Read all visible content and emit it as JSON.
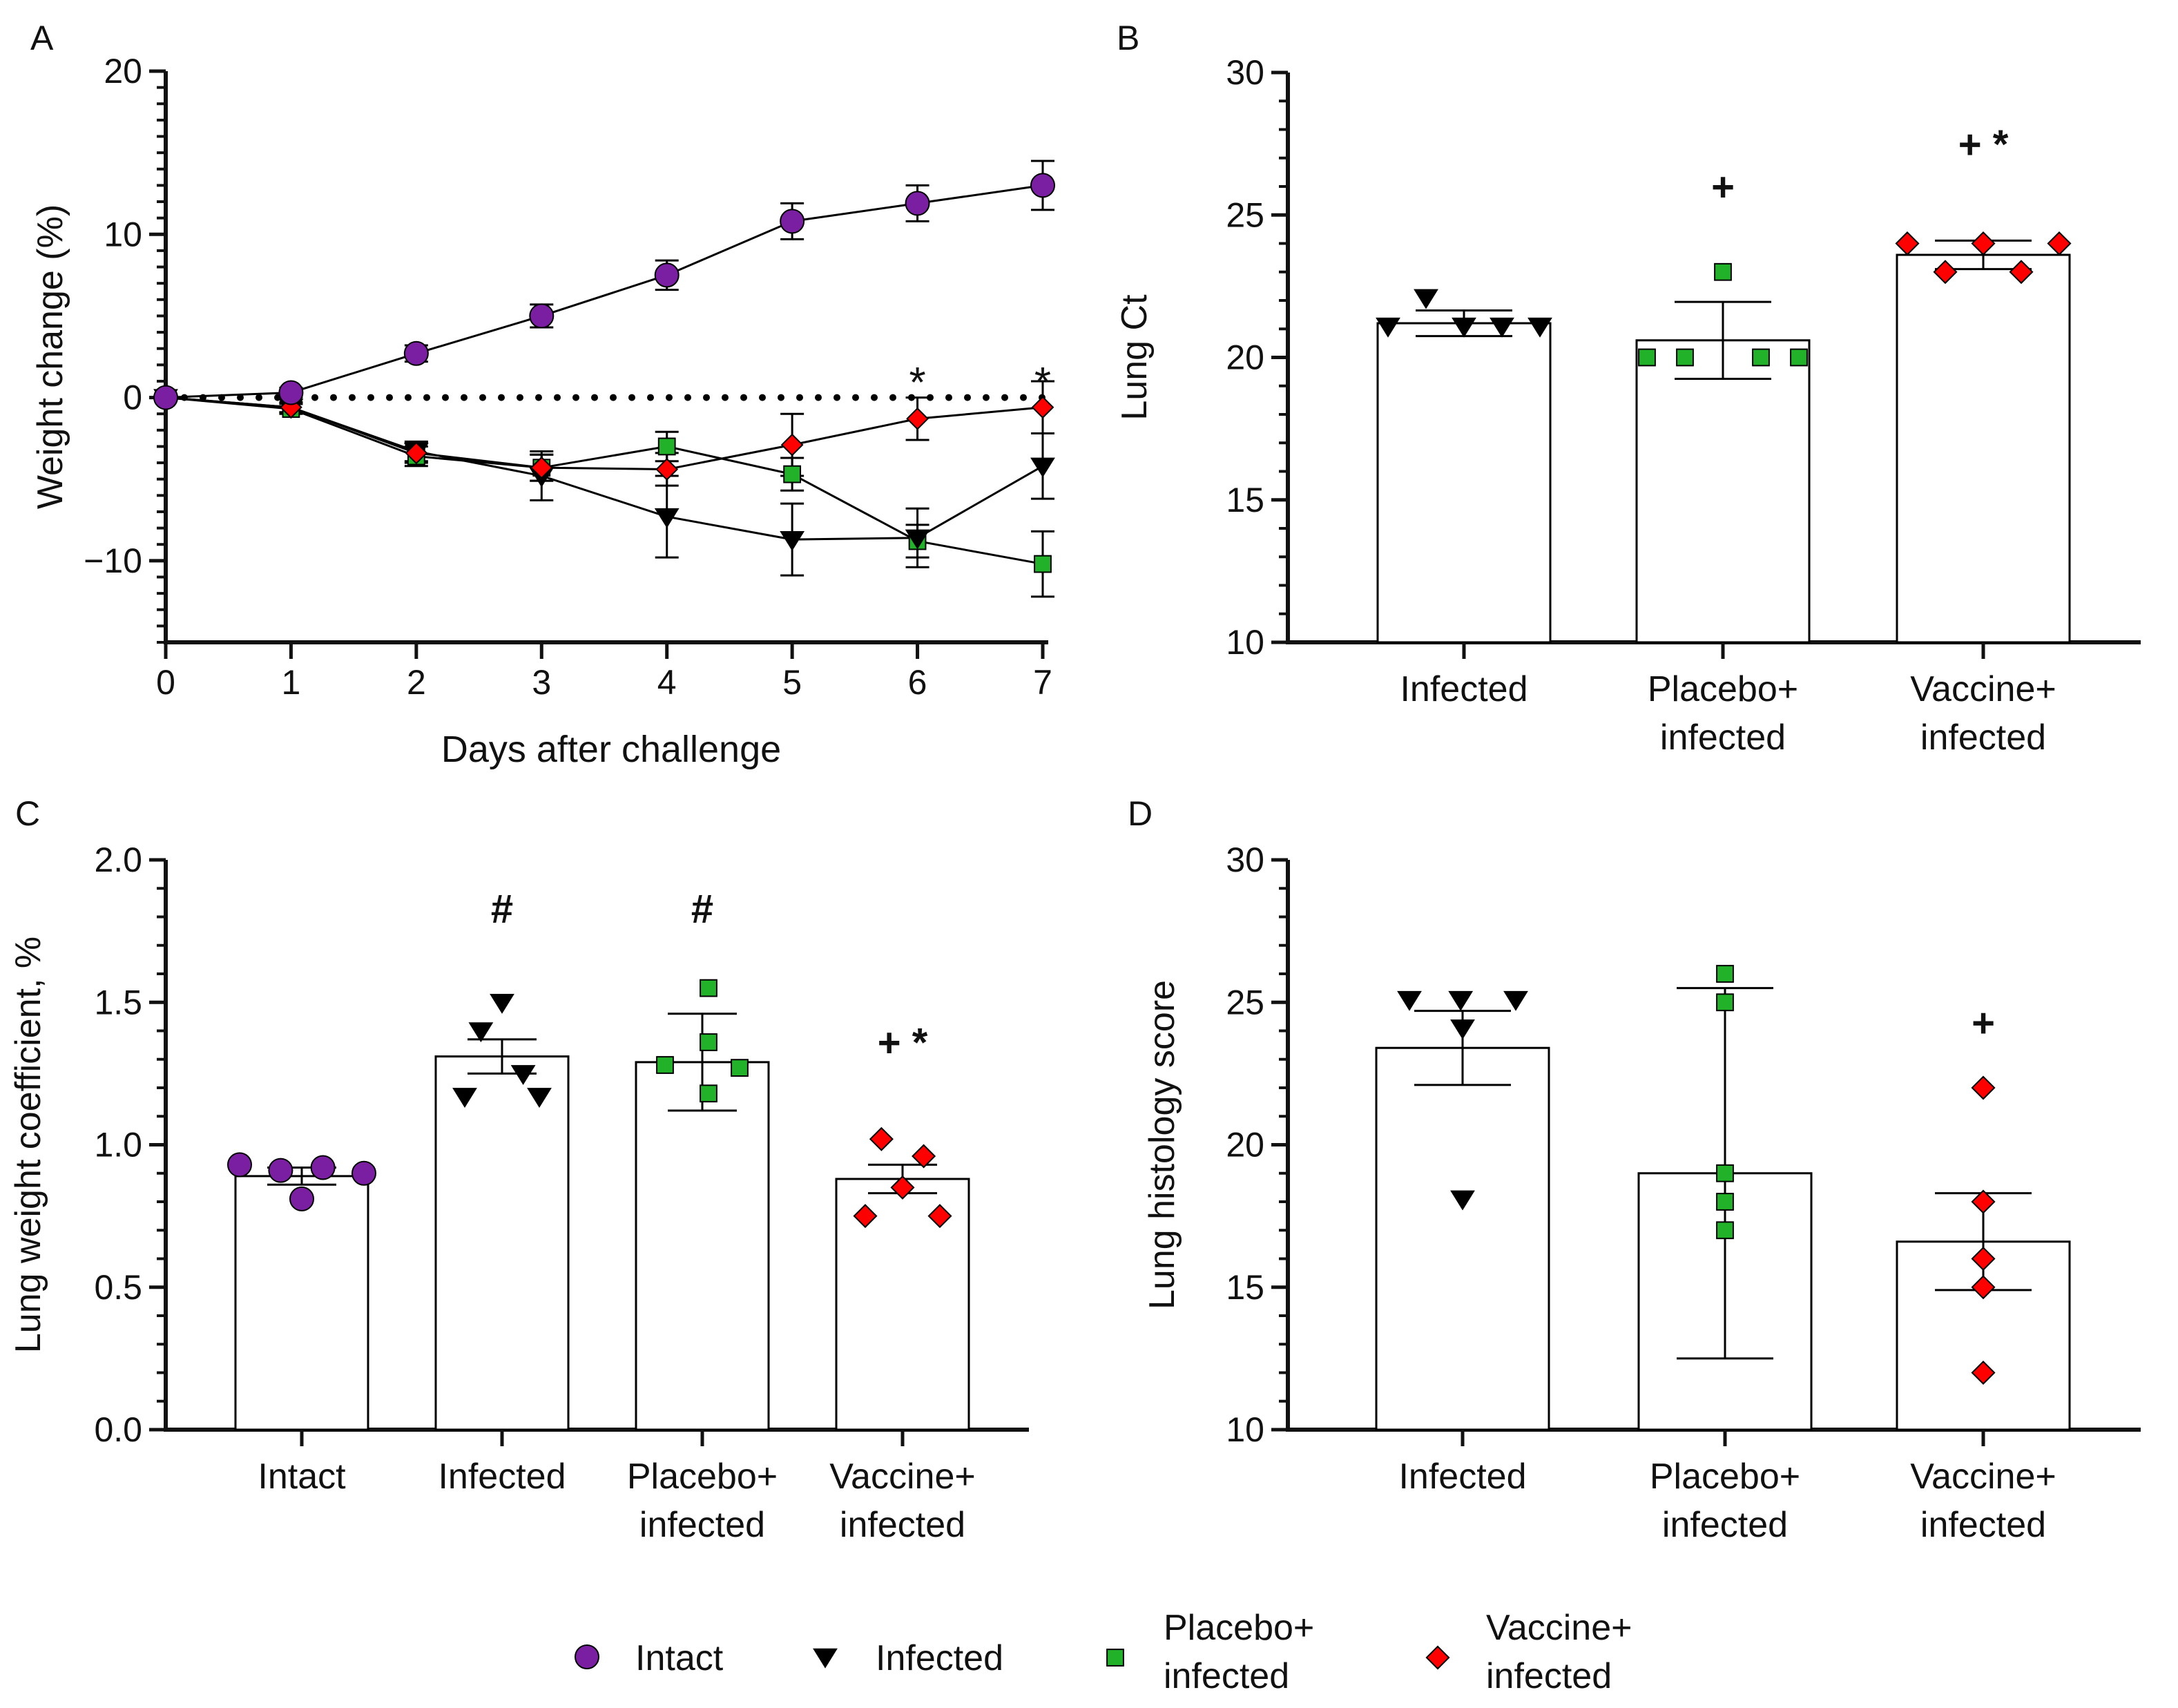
{
  "colors": {
    "intact": "#7b1fa2",
    "infected": "#000000",
    "placebo": "#22b22a",
    "vaccine": "#ff0000",
    "axis": "#111111",
    "bar_fill": "#ffffff"
  },
  "legend": {
    "items": [
      {
        "key": "intact",
        "marker": "circle",
        "label_lines": [
          "Intact"
        ]
      },
      {
        "key": "infected",
        "marker": "triangle-down",
        "label_lines": [
          "Infected"
        ]
      },
      {
        "key": "placebo",
        "marker": "square",
        "label_lines": [
          "Placebo+",
          "infected"
        ]
      },
      {
        "key": "vaccine",
        "marker": "diamond",
        "label_lines": [
          "Vaccine+",
          "infected"
        ]
      }
    ]
  },
  "chart_data": [
    {
      "panel": "A",
      "type": "line",
      "xlabel": "Days after challenge",
      "ylabel": "Weight change (%)",
      "x": [
        0,
        1,
        2,
        3,
        4,
        5,
        6,
        7
      ],
      "xlim": [
        0,
        7
      ],
      "ylim": [
        -15,
        20
      ],
      "yticks": [
        -10,
        0,
        10,
        20
      ],
      "ytick_labels": [
        "−10",
        "0",
        "10",
        "20"
      ],
      "y_minor_step": 1,
      "reference_line": {
        "y": 0,
        "style": "dotted"
      },
      "series": [
        {
          "key": "intact",
          "name": "Intact",
          "marker": "circle",
          "values": [
            0,
            0.3,
            2.7,
            5.0,
            7.5,
            10.8,
            11.9,
            13.0
          ],
          "err": [
            0,
            0.3,
            0.5,
            0.7,
            0.9,
            1.1,
            1.1,
            1.5
          ]
        },
        {
          "key": "infected",
          "name": "Infected",
          "marker": "triangle-down",
          "values": [
            0,
            -0.6,
            -3.3,
            -4.8,
            -7.3,
            -8.7,
            -8.6,
            -4.2
          ],
          "err": [
            0,
            0.3,
            0.6,
            1.5,
            2.5,
            2.2,
            1.8,
            2.0
          ]
        },
        {
          "key": "placebo",
          "name": "Placebo+infected",
          "marker": "square",
          "values": [
            0,
            -0.7,
            -3.6,
            -4.3,
            -3.0,
            -4.7,
            -8.8,
            -10.2
          ],
          "err": [
            0,
            0.3,
            0.6,
            0.8,
            0.9,
            1.0,
            1.0,
            2.0
          ]
        },
        {
          "key": "vaccine",
          "name": "Vaccine+infected",
          "marker": "diamond",
          "values": [
            0,
            -0.6,
            -3.4,
            -4.3,
            -4.4,
            -2.9,
            -1.3,
            -0.6
          ],
          "err": [
            0,
            0.3,
            0.6,
            0.8,
            1.0,
            1.9,
            1.3,
            1.6
          ]
        }
      ],
      "annotations": [
        {
          "x": 6,
          "y": 1.2,
          "text": "*"
        },
        {
          "x": 7,
          "y": 1.2,
          "text": "*"
        }
      ]
    },
    {
      "panel": "B",
      "type": "bar",
      "ylabel": "Lung Ct",
      "ylim": [
        10,
        30
      ],
      "yticks": [
        10,
        15,
        20,
        25,
        30
      ],
      "ytick_labels": [
        "10",
        "15",
        "20",
        "25",
        "30"
      ],
      "y_minor_step": 1,
      "categories": [
        {
          "key": "infected",
          "label_lines": [
            "Infected"
          ]
        },
        {
          "key": "placebo",
          "label_lines": [
            "Placebo+",
            "infected"
          ]
        },
        {
          "key": "vaccine",
          "label_lines": [
            "Vaccine+",
            "infected"
          ]
        }
      ],
      "values": [
        21.2,
        20.6,
        23.6
      ],
      "err": [
        0.45,
        1.35,
        0.5
      ],
      "points": [
        [
          [
            21.1,
            22.1,
            21.1,
            21.1,
            21.1
          ],
          [
            -0.5,
            -0.25,
            0,
            0.25,
            0.5
          ]
        ],
        [
          [
            20.0,
            23.0,
            20.0,
            20.0,
            20.0
          ],
          [
            -0.5,
            0,
            -0.25,
            0.25,
            0.5
          ]
        ],
        [
          [
            24.0,
            23.0,
            24.0,
            23.0,
            24.0
          ],
          [
            -0.5,
            -0.25,
            0,
            0.25,
            0.5
          ]
        ]
      ],
      "annotations": [
        {
          "category": 1,
          "y": 25.5,
          "text": "+"
        },
        {
          "category": 2,
          "y": 27.0,
          "text": "+ *"
        }
      ]
    },
    {
      "panel": "C",
      "type": "bar",
      "ylabel": "Lung weight coefficient, %",
      "ylim": [
        0,
        2.0
      ],
      "yticks": [
        0,
        0.5,
        1.0,
        1.5,
        2.0
      ],
      "ytick_labels": [
        "0.0",
        "0.5",
        "1.0",
        "1.5",
        "2.0"
      ],
      "y_minor_step": 0.1,
      "categories": [
        {
          "key": "intact",
          "label_lines": [
            "Intact"
          ]
        },
        {
          "key": "infected",
          "label_lines": [
            "Infected"
          ]
        },
        {
          "key": "placebo",
          "label_lines": [
            "Placebo+",
            "infected"
          ]
        },
        {
          "key": "vaccine",
          "label_lines": [
            "Vaccine+",
            "infected"
          ]
        }
      ],
      "values": [
        0.89,
        1.31,
        1.29,
        0.88
      ],
      "err": [
        0.03,
        0.06,
        0.17,
        0.05
      ],
      "points": [
        [
          [
            0.93,
            0.91,
            0.81,
            0.92,
            0.9
          ],
          [
            -0.5,
            -0.17,
            0,
            0.17,
            0.5
          ]
        ],
        [
          [
            1.5,
            1.4,
            1.17,
            1.25,
            1.17
          ],
          [
            0,
            -0.17,
            -0.3,
            0.17,
            0.3
          ]
        ],
        [
          [
            1.55,
            1.36,
            1.18,
            1.28,
            1.27
          ],
          [
            0.05,
            0.05,
            0.05,
            -0.3,
            0.3
          ]
        ],
        [
          [
            1.02,
            0.96,
            0.85,
            0.75,
            0.75
          ],
          [
            -0.17,
            0.17,
            0,
            -0.3,
            0.3
          ]
        ]
      ],
      "annotations": [
        {
          "category": 1,
          "y": 1.78,
          "text": "#"
        },
        {
          "category": 2,
          "y": 1.78,
          "text": "#"
        },
        {
          "category": 3,
          "y": 1.31,
          "text": "+ *"
        }
      ]
    },
    {
      "panel": "D",
      "type": "bar",
      "ylabel": "Lung histology score",
      "ylim": [
        10,
        30
      ],
      "yticks": [
        10,
        15,
        20,
        25,
        30
      ],
      "ytick_labels": [
        "10",
        "15",
        "20",
        "25",
        "30"
      ],
      "y_minor_step": 1,
      "categories": [
        {
          "key": "infected",
          "label_lines": [
            "Infected"
          ]
        },
        {
          "key": "placebo",
          "label_lines": [
            "Placebo+",
            "infected"
          ]
        },
        {
          "key": "vaccine",
          "label_lines": [
            "Vaccine+",
            "infected"
          ]
        }
      ],
      "values": [
        23.4,
        19.0,
        16.6
      ],
      "err": [
        1.3,
        6.5,
        1.7
      ],
      "points": [
        [
          [
            25.1,
            25.1,
            25.1,
            24.1,
            18.1
          ],
          [
            -0.55,
            -0.02,
            0.55,
            0,
            0
          ]
        ],
        [
          [
            26.0,
            25.0,
            19.0,
            18.0,
            17.0
          ],
          [
            0,
            0,
            0,
            0,
            0
          ]
        ],
        [
          [
            22.0,
            18.0,
            16.0,
            15.0,
            12.0
          ],
          [
            0,
            0,
            0,
            0,
            0
          ]
        ]
      ],
      "annotations": [
        {
          "category": 2,
          "y": 23.8,
          "text": "+"
        }
      ]
    }
  ]
}
